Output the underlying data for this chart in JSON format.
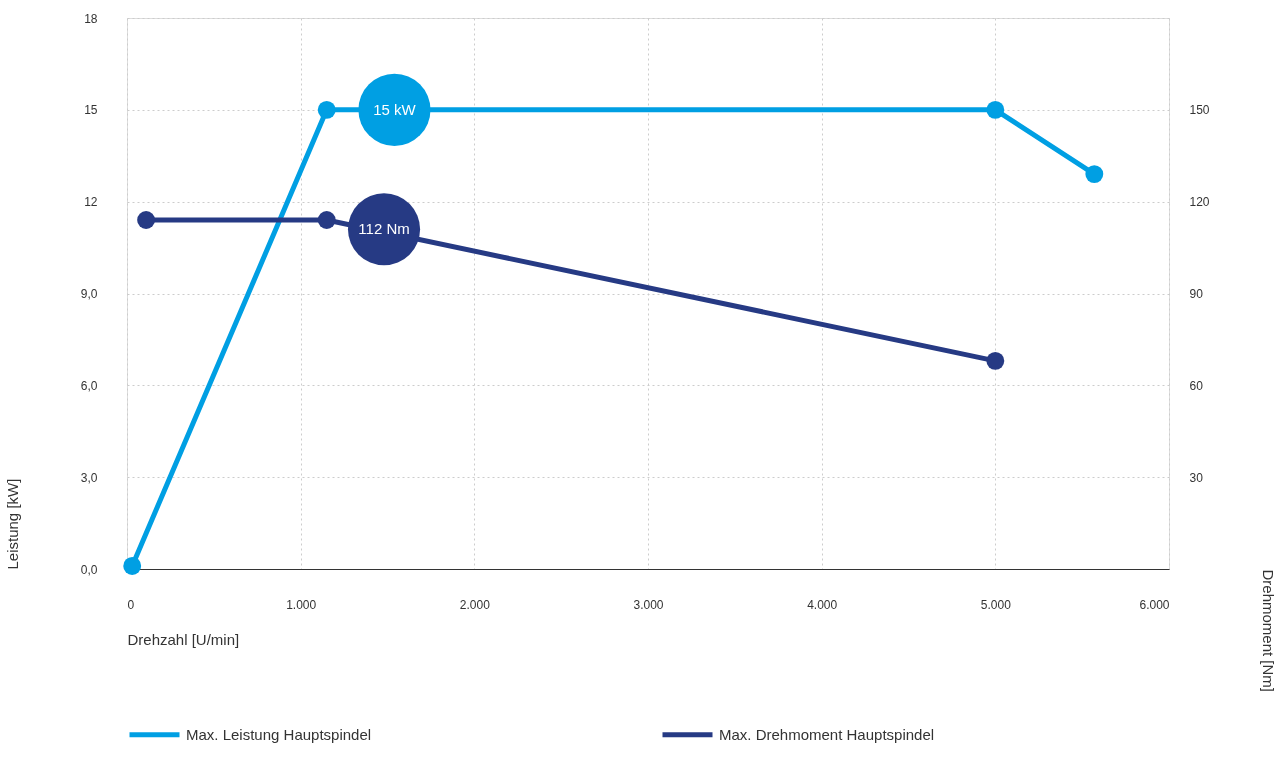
{
  "chart_data": {
    "type": "line",
    "xlabel": "Drehzahl [U/min]",
    "ylabel": "Leistung [kW]",
    "y2label": "Drehmoment [Nm]",
    "xlim": [
      0,
      6000
    ],
    "xticks": [
      0,
      {
        "value": 1000,
        "label": "1.000"
      },
      {
        "value": 2000,
        "label": "2.000"
      },
      {
        "value": 3000,
        "label": "3.000"
      },
      {
        "value": 4000,
        "label": "4.000"
      },
      {
        "value": 5000,
        "label": "5.000"
      },
      {
        "value": 6000,
        "label": "6.000"
      }
    ],
    "ylim": [
      0,
      18
    ],
    "yticks": [
      {
        "value": 0,
        "label": "0,0"
      },
      {
        "value": 3,
        "label": "3,0"
      },
      {
        "value": 6,
        "label": "6,0"
      },
      {
        "value": 9,
        "label": "9,0"
      },
      12,
      15,
      18
    ],
    "y2lim": [
      0,
      180
    ],
    "y2ticks": [
      30,
      60,
      90,
      120,
      150
    ],
    "series": [
      {
        "name": "Max. Leistung Hauptspindel",
        "color": "#009fe3",
        "x": [
          30,
          1150,
          5000,
          5570
        ],
        "values": [
          0.1,
          15,
          15,
          12.9
        ]
      },
      {
        "name": "Max. Drehmoment Hauptspindel",
        "color": "#263a84",
        "axis": "y2",
        "x": [
          110,
          1150,
          5000
        ],
        "values": [
          114,
          114,
          68
        ]
      }
    ],
    "annotations": [
      {
        "text": "15 kW",
        "x": 1540,
        "y": 15
      },
      {
        "text": "112 Nm",
        "x": 1480,
        "y": 11.1
      }
    ],
    "grid": true,
    "legend": "bottom",
    "marker": "circle",
    "line_style": "solid"
  }
}
